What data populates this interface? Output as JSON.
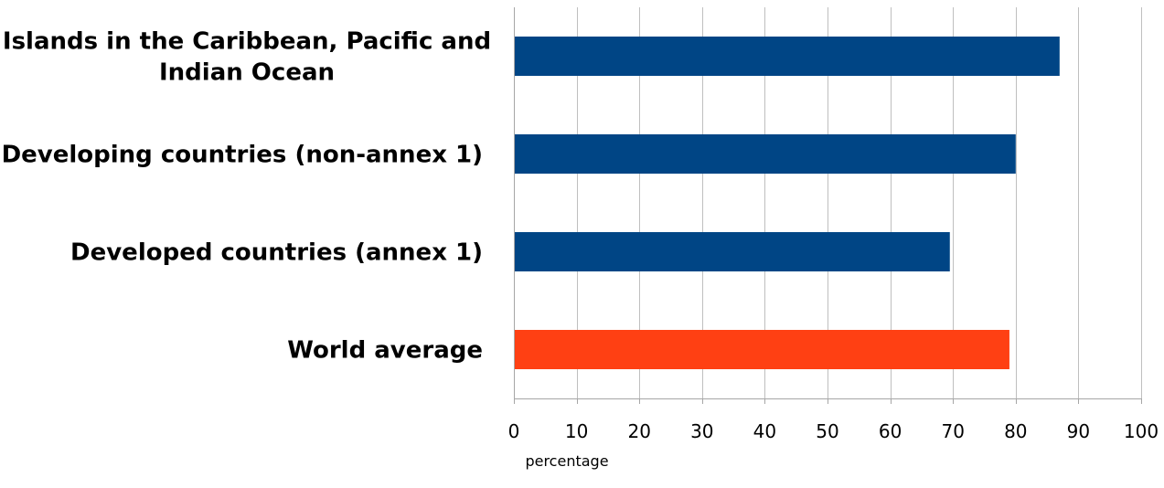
{
  "chart_data": {
    "type": "bar",
    "orientation": "horizontal",
    "categories": [
      [
        "Islands in the Caribbean, Pacific and",
        "Indian Ocean"
      ],
      [
        "Developing countries (non-annex 1)"
      ],
      [
        "Developed countries (annex 1)"
      ],
      [
        "World average"
      ]
    ],
    "values": [
      87,
      80,
      69.5,
      79
    ],
    "colors": [
      "#004585",
      "#004585",
      "#004585",
      "#ff4013"
    ],
    "xlabel": "percentage",
    "ylabel": "",
    "xlim": [
      0,
      100
    ],
    "xticks": [
      "0",
      "10",
      "20",
      "30",
      "40",
      "50",
      "60",
      "70",
      "80",
      "90",
      "100"
    ],
    "grid": "vertical",
    "legend": "none"
  }
}
